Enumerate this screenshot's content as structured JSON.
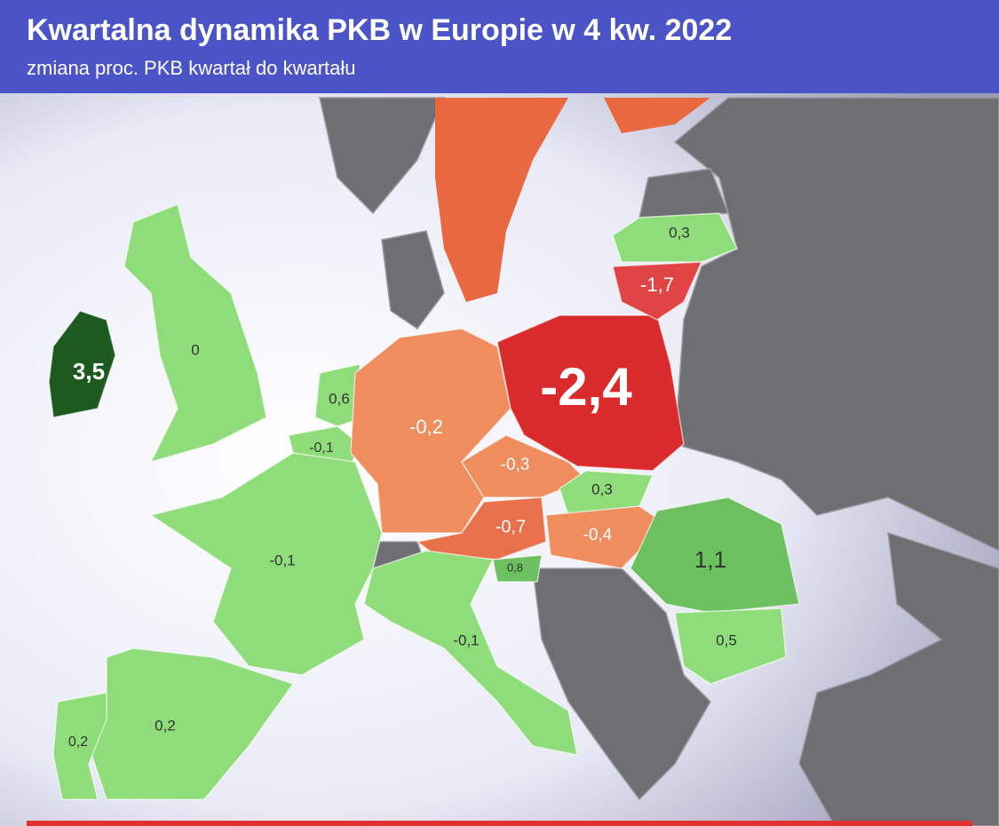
{
  "title": "Kwartalna dynamika PKB w Europie w 4 kw. 2022",
  "subtitle": "zmiana proc. PKB kwartał do kwartału",
  "chart_data": {
    "type": "choropleth",
    "values": [
      3.5,
      0,
      0.6,
      -0.1,
      -0.2,
      -2.4,
      0.3,
      -1.7,
      -0.3,
      0.3,
      -0.7,
      -0.4,
      0.8,
      1.1,
      0.5,
      -0.1,
      -0.1,
      0.2,
      0.2
    ],
    "value_labels": [
      "3,5",
      "0",
      "0,6",
      "-0,1",
      "-0,2",
      "-2,4",
      "0,3",
      "-1,7",
      "-0,3",
      "0,3",
      "-0,7",
      "-0,4",
      "0,8",
      "1,1",
      "0,5",
      "-0,1",
      "-0,1",
      "0,2",
      "0,2"
    ],
    "colors": [
      "#1d5a1f",
      "#8fdc7a",
      "#8fdc7a",
      "#8fdc7a",
      "#ef8d5e",
      "#d92b2b",
      "#8fdc7a",
      "#e04444",
      "#ef8d5e",
      "#8fdc7a",
      "#e8714c",
      "#ef8d5e",
      "#6cc060",
      "#6cc060",
      "#8fdc7a",
      "#8fdc7a",
      "#8fdc7a",
      "#8fdc7a",
      "#8fdc7a"
    ]
  }
}
